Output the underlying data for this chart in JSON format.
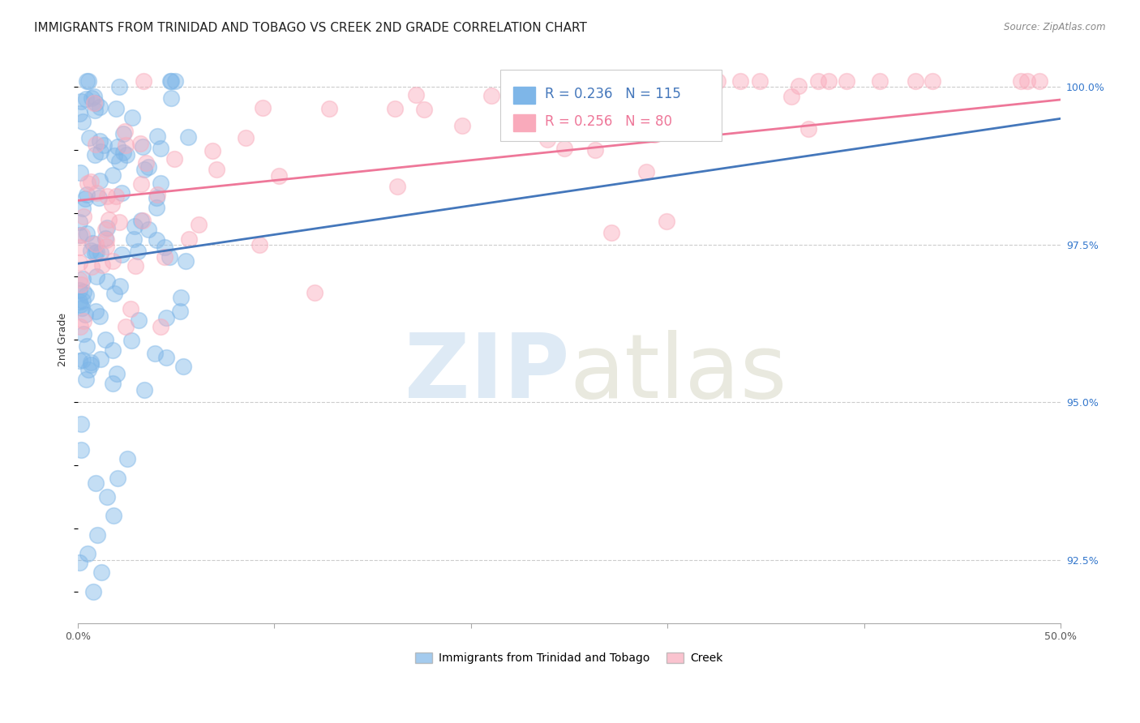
{
  "title": "IMMIGRANTS FROM TRINIDAD AND TOBAGO VS CREEK 2ND GRADE CORRELATION CHART",
  "source": "Source: ZipAtlas.com",
  "ylabel": "2nd Grade",
  "xlim": [
    0.0,
    0.5
  ],
  "ylim": [
    0.915,
    1.005
  ],
  "xticks": [
    0.0,
    0.1,
    0.2,
    0.3,
    0.4,
    0.5
  ],
  "xticklabels": [
    "0.0%",
    "",
    "",
    "",
    "",
    "50.0%"
  ],
  "ytick_positions": [
    0.925,
    0.95,
    0.975,
    1.0
  ],
  "yticklabels_right": [
    "92.5%",
    "95.0%",
    "97.5%",
    "100.0%"
  ],
  "blue_R": 0.236,
  "blue_N": 115,
  "pink_R": 0.256,
  "pink_N": 80,
  "blue_color": "#7EB6E8",
  "pink_color": "#F9AABB",
  "blue_line_color": "#4477BB",
  "pink_line_color": "#EE7799",
  "legend_label_blue": "Immigrants from Trinidad and Tobago",
  "legend_label_pink": "Creek",
  "title_fontsize": 11,
  "axis_label_fontsize": 9,
  "tick_fontsize": 9
}
